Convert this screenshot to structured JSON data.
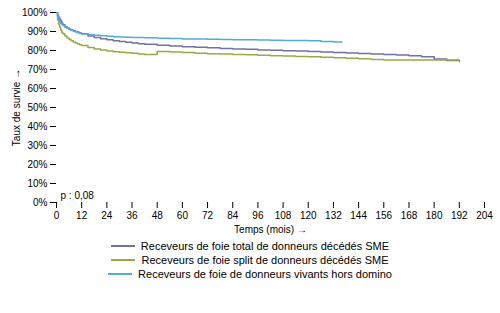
{
  "chart_data": {
    "type": "step",
    "title": "",
    "xlabel": "Temps (mois)",
    "ylabel": "Taux de survie",
    "annotation": "p : 0,08",
    "xlim": [
      0,
      204
    ],
    "ylim": [
      0.0,
      1.0
    ],
    "xticks": [
      0,
      12,
      24,
      36,
      48,
      60,
      72,
      84,
      96,
      108,
      120,
      132,
      144,
      156,
      168,
      180,
      192,
      204
    ],
    "yticks": [
      {
        "value": 0.0,
        "label": "0%"
      },
      {
        "value": 0.1,
        "label": "10%"
      },
      {
        "value": 0.2,
        "label": "20%"
      },
      {
        "value": 0.3,
        "label": "30%"
      },
      {
        "value": 0.4,
        "label": "40%"
      },
      {
        "value": 0.5,
        "label": "50%"
      },
      {
        "value": 0.6,
        "label": "60%"
      },
      {
        "value": 0.7,
        "label": "70%"
      },
      {
        "value": 0.8,
        "label": "80%"
      },
      {
        "value": 0.9,
        "label": "90%"
      },
      {
        "value": 1.0,
        "label": "100%"
      }
    ],
    "grid": false,
    "series": [
      {
        "name": "Receveurs de foie total de donneurs décédés SME",
        "color": "#7070aa",
        "x": [
          0,
          0.5,
          1,
          1.5,
          2,
          2.5,
          3,
          4,
          5,
          6,
          7,
          8,
          9,
          10,
          11,
          12,
          15,
          18,
          21,
          24,
          27,
          30,
          33,
          36,
          39,
          42,
          48,
          54,
          60,
          66,
          72,
          78,
          84,
          90,
          96,
          102,
          108,
          114,
          120,
          126,
          132,
          138,
          144,
          150,
          156,
          162,
          168,
          174,
          180,
          186,
          192
        ],
        "values": [
          1.0,
          0.985,
          0.975,
          0.965,
          0.955,
          0.945,
          0.935,
          0.925,
          0.918,
          0.912,
          0.908,
          0.904,
          0.9,
          0.896,
          0.892,
          0.888,
          0.876,
          0.868,
          0.862,
          0.856,
          0.851,
          0.847,
          0.843,
          0.84,
          0.836,
          0.833,
          0.828,
          0.824,
          0.82,
          0.817,
          0.814,
          0.811,
          0.808,
          0.806,
          0.803,
          0.801,
          0.799,
          0.797,
          0.795,
          0.792,
          0.79,
          0.787,
          0.784,
          0.782,
          0.779,
          0.776,
          0.773,
          0.767,
          0.755,
          0.748,
          0.743
        ]
      },
      {
        "name": "Receveurs de foie split de donneurs décédés SME",
        "color": "#99aa44",
        "x": [
          0,
          0.5,
          1,
          1.5,
          2,
          2.5,
          3,
          4,
          5,
          6,
          7,
          8,
          9,
          10,
          11,
          12,
          15,
          18,
          21,
          24,
          27,
          30,
          33,
          36,
          39,
          42,
          48,
          54,
          60,
          66,
          72,
          78,
          84,
          90,
          96,
          102,
          108,
          114,
          120,
          126,
          132,
          138,
          144,
          150,
          156,
          162,
          168,
          174,
          180,
          186,
          192
        ],
        "values": [
          1.0,
          0.96,
          0.94,
          0.922,
          0.908,
          0.896,
          0.888,
          0.876,
          0.866,
          0.858,
          0.851,
          0.845,
          0.84,
          0.835,
          0.83,
          0.826,
          0.816,
          0.808,
          0.803,
          0.798,
          0.794,
          0.791,
          0.788,
          0.785,
          0.782,
          0.779,
          0.795,
          0.792,
          0.789,
          0.786,
          0.783,
          0.781,
          0.779,
          0.777,
          0.775,
          0.773,
          0.771,
          0.769,
          0.767,
          0.765,
          0.762,
          0.759,
          0.756,
          0.753,
          0.75,
          0.75,
          0.75,
          0.75,
          0.75,
          0.75,
          0.75
        ]
      },
      {
        "name": "Receveurs de foie de donneurs vivants hors domino",
        "color": "#55aadd",
        "x": [
          0,
          0.5,
          1,
          1.5,
          2,
          2.5,
          3,
          4,
          5,
          6,
          7,
          8,
          9,
          10,
          11,
          12,
          15,
          18,
          21,
          24,
          27,
          30,
          33,
          36,
          42,
          48,
          54,
          60,
          66,
          72,
          78,
          84,
          90,
          96,
          102,
          108,
          114,
          120,
          126,
          132,
          136
        ],
        "values": [
          1.0,
          0.978,
          0.96,
          0.95,
          0.944,
          0.938,
          0.932,
          0.922,
          0.916,
          0.91,
          0.905,
          0.901,
          0.897,
          0.893,
          0.89,
          0.887,
          0.883,
          0.88,
          0.877,
          0.875,
          0.873,
          0.871,
          0.87,
          0.869,
          0.867,
          0.865,
          0.863,
          0.861,
          0.86,
          0.859,
          0.858,
          0.857,
          0.856,
          0.855,
          0.854,
          0.853,
          0.852,
          0.851,
          0.848,
          0.845,
          0.843
        ]
      }
    ]
  }
}
